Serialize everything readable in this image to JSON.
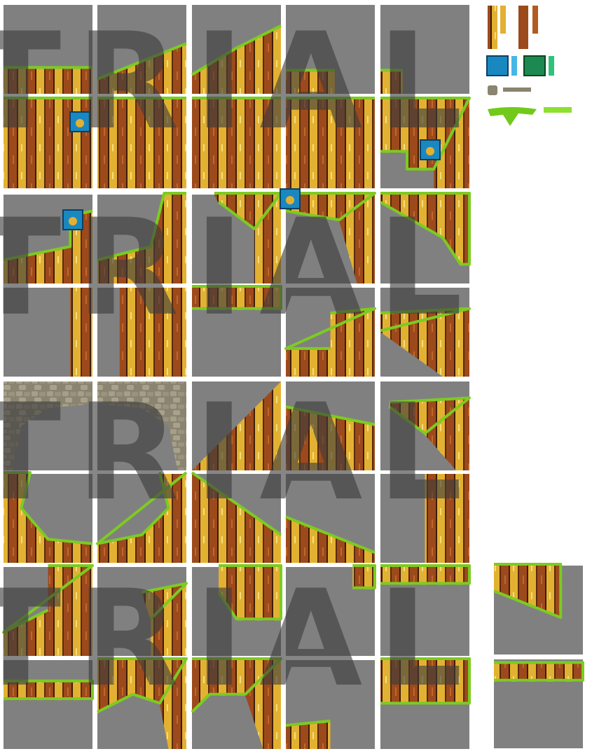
{
  "watermarks": [
    "TRIAL",
    "TRIAL",
    "TRIAL",
    "TRIAL"
  ]
}
